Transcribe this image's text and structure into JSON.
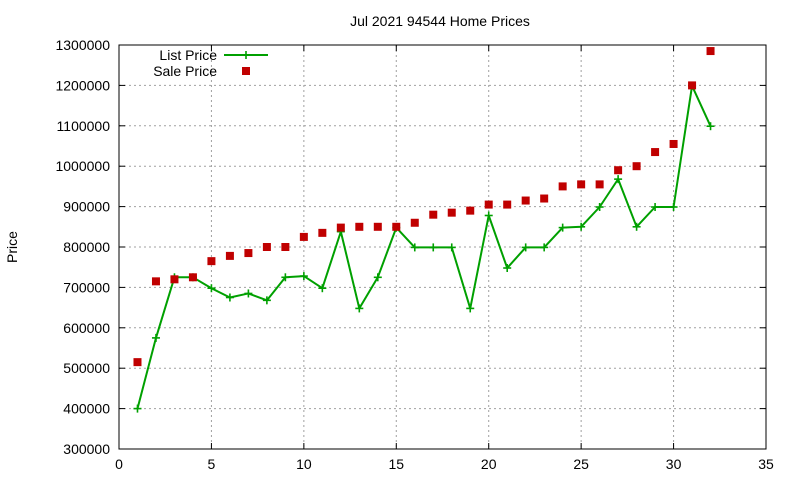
{
  "colors": {
    "list_price": "#00a000",
    "sale_price": "#c00000",
    "grid": "#a0a0a0",
    "axis": "#000000"
  },
  "chart_data": {
    "type": "line",
    "title": "Jul 2021 94544 Home Prices",
    "xlabel": "",
    "ylabel": "Price",
    "xlim": [
      0,
      35
    ],
    "ylim": [
      300000,
      1300000
    ],
    "x_ticks": [
      0,
      5,
      10,
      15,
      20,
      25,
      30,
      35
    ],
    "y_ticks": [
      300000,
      400000,
      500000,
      600000,
      700000,
      800000,
      900000,
      1000000,
      1100000,
      1200000,
      1300000
    ],
    "grid": true,
    "legend_position": "top-left",
    "series": [
      {
        "name": "List Price",
        "style": "line-with-plus-markers",
        "color": "#00a000",
        "x": [
          1,
          2,
          3,
          4,
          5,
          6,
          7,
          8,
          9,
          10,
          11,
          12,
          13,
          14,
          15,
          16,
          17,
          18,
          19,
          20,
          21,
          22,
          23,
          24,
          25,
          26,
          27,
          28,
          29,
          30,
          31,
          32
        ],
        "values": [
          400000,
          575000,
          725000,
          725000,
          698000,
          675000,
          685000,
          668000,
          725000,
          728000,
          698000,
          838000,
          648000,
          725000,
          848000,
          799000,
          799000,
          799000,
          648000,
          878000,
          748000,
          799000,
          799000,
          848000,
          850000,
          899000,
          968000,
          850000,
          899000,
          899000,
          1199000,
          1099000
        ]
      },
      {
        "name": "Sale Price",
        "style": "square-markers",
        "color": "#c00000",
        "x": [
          1,
          2,
          3,
          4,
          5,
          6,
          7,
          8,
          9,
          10,
          11,
          12,
          13,
          14,
          15,
          16,
          17,
          18,
          19,
          20,
          21,
          22,
          23,
          24,
          25,
          26,
          27,
          28,
          29,
          30,
          31,
          32
        ],
        "values": [
          515000,
          715000,
          720000,
          725000,
          765000,
          778000,
          785000,
          800000,
          800000,
          825000,
          835000,
          848000,
          850000,
          850000,
          850000,
          860000,
          880000,
          885000,
          890000,
          905000,
          905000,
          915000,
          920000,
          950000,
          955000,
          955000,
          990000,
          1000000,
          1035000,
          1055000,
          1200000,
          1285000
        ]
      }
    ]
  }
}
